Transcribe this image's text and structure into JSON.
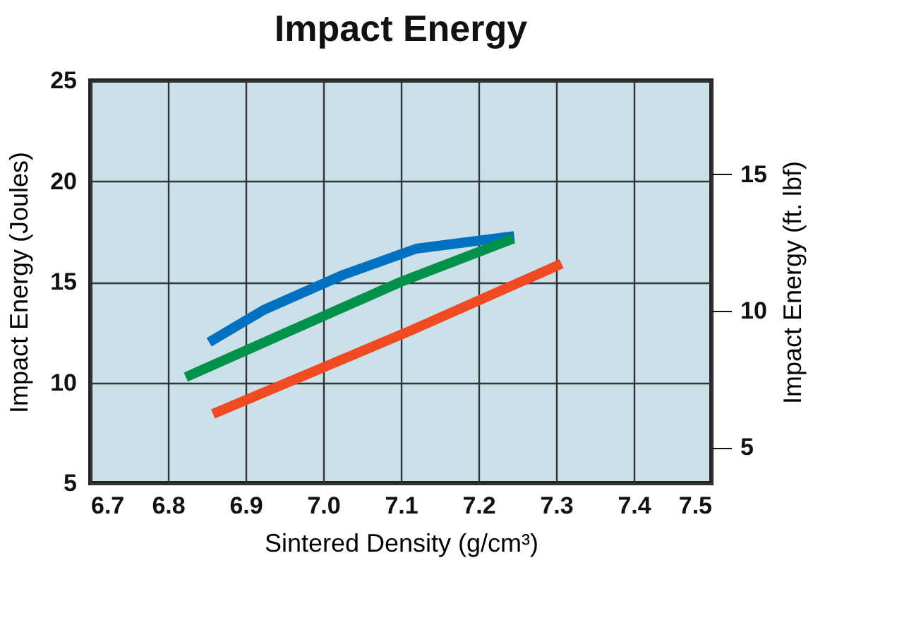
{
  "chart_data": {
    "type": "line",
    "title": "Impact Energy",
    "xlabel": "Sintered Density (g/cm³)",
    "ylabel": "Impact Energy (Joules)",
    "y2label": "Impact Energy (ft. lbf)",
    "xlim": [
      6.7,
      7.5
    ],
    "xticks": [
      6.7,
      6.8,
      6.9,
      {
        "value": 7,
        "label": "7.0"
      },
      7.1,
      7.2,
      7.3,
      7.4,
      7.5
    ],
    "ylim": [
      5,
      25
    ],
    "yticks": [
      5,
      10,
      15,
      20,
      25
    ],
    "y2lim": [
      3.69,
      18.44
    ],
    "y2ticks": [
      5,
      10,
      15
    ],
    "grid": true,
    "line_style": "solid",
    "marker": "none",
    "series": [
      {
        "color": "#0070c0",
        "x": [
          6.853,
          6.923,
          7.026,
          7.12,
          7.246
        ],
        "values": [
          12.0,
          13.6,
          15.35,
          16.65,
          17.27
        ]
      },
      {
        "color": "#00914a",
        "x": [
          6.823,
          7.1,
          7.245
        ],
        "values": [
          10.27,
          15.0,
          17.15
        ]
      },
      {
        "color": "#f04a23",
        "x": [
          6.858,
          7.114,
          7.307
        ],
        "values": [
          8.44,
          12.6,
          15.9
        ]
      }
    ]
  }
}
